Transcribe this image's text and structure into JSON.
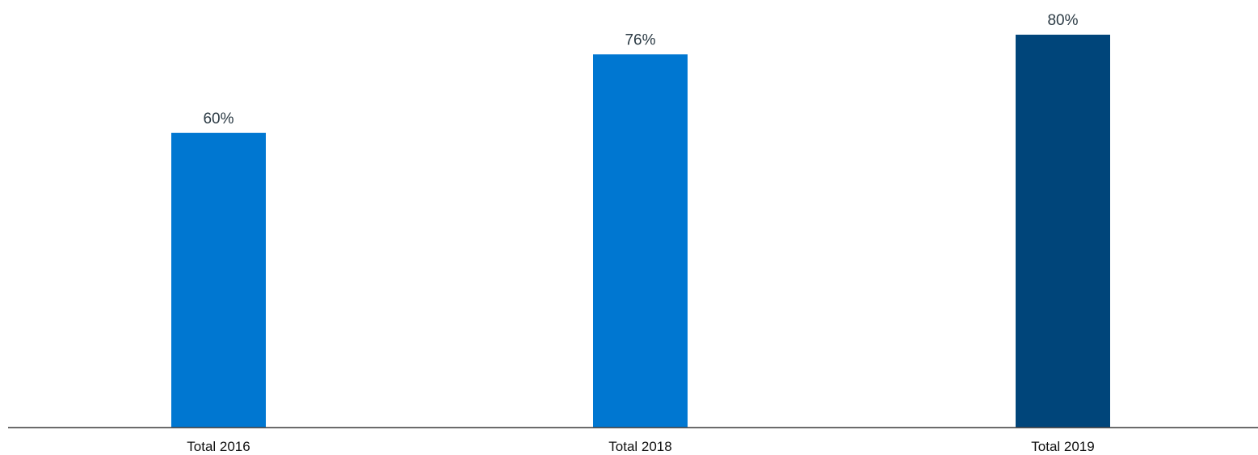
{
  "chart_data": {
    "type": "bar",
    "categories": [
      "Total 2016",
      "Total 2018",
      "Total 2019"
    ],
    "values": [
      60,
      76,
      80
    ],
    "value_labels": [
      "60%",
      "76%",
      "80%"
    ],
    "bar_colors": [
      "#0077d1",
      "#0077d1",
      "#00457a"
    ],
    "axis_color": "#3a3a3a",
    "title": "",
    "xlabel": "",
    "ylabel": "",
    "ylim": [
      0,
      80
    ],
    "grid": false,
    "legend": "none"
  }
}
